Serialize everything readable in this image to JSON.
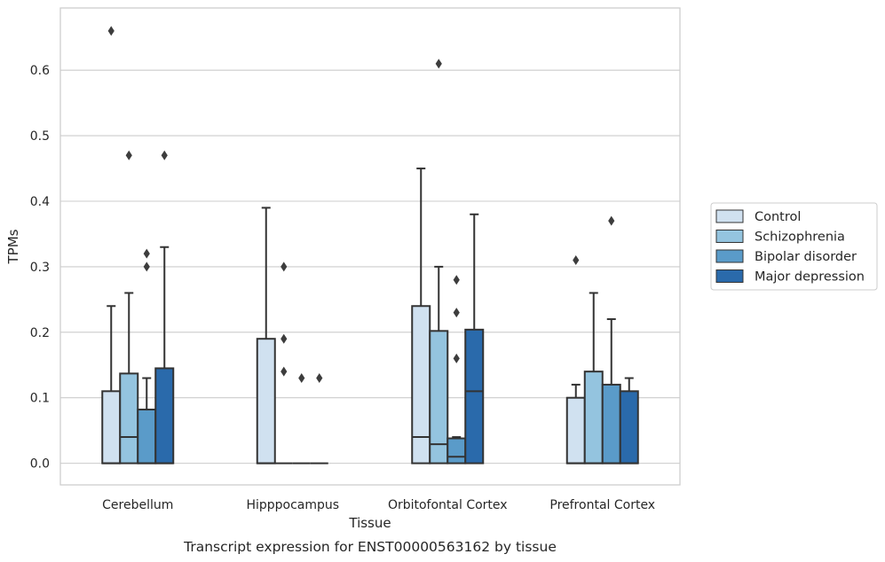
{
  "chart_data": {
    "type": "box",
    "title": "",
    "caption": "Transcript expression for ENST00000563162 by tissue",
    "xlabel": "Tissue",
    "ylabel": "TPMs",
    "ylim": [
      -0.033,
      0.695
    ],
    "yticks": [
      "0.0",
      "0.1",
      "0.2",
      "0.3",
      "0.4",
      "0.5",
      "0.6"
    ],
    "grid": true,
    "legend_position": "right",
    "categories": [
      "Cerebellum",
      "Hipppocampus",
      "Orbitofontal Cortex",
      "Prefrontal Cortex"
    ],
    "series": [
      {
        "name": "Control",
        "color": "#d0e1f0",
        "boxes": [
          {
            "q1": 0.0,
            "median": 0.0,
            "q3": 0.11,
            "whisker_low": 0.0,
            "whisker_high": 0.24,
            "outliers": [
              0.66
            ]
          },
          {
            "q1": 0.0,
            "median": 0.0,
            "q3": 0.19,
            "whisker_low": 0.0,
            "whisker_high": 0.39,
            "outliers": []
          },
          {
            "q1": 0.0,
            "median": 0.04,
            "q3": 0.24,
            "whisker_low": 0.0,
            "whisker_high": 0.45,
            "outliers": []
          },
          {
            "q1": 0.0,
            "median": 0.0,
            "q3": 0.1,
            "whisker_low": 0.0,
            "whisker_high": 0.12,
            "outliers": [
              0.31
            ]
          }
        ]
      },
      {
        "name": "Schizophrenia",
        "color": "#94c4df",
        "boxes": [
          {
            "q1": 0.0,
            "median": 0.04,
            "q3": 0.137,
            "whisker_low": 0.0,
            "whisker_high": 0.26,
            "outliers": [
              0.47
            ]
          },
          {
            "q1": 0.0,
            "median": 0.0,
            "q3": 0.0,
            "whisker_low": 0.0,
            "whisker_high": 0.0,
            "outliers": [
              0.3,
              0.19,
              0.14
            ]
          },
          {
            "q1": 0.0,
            "median": 0.029,
            "q3": 0.202,
            "whisker_low": 0.0,
            "whisker_high": 0.3,
            "outliers": [
              0.61
            ]
          },
          {
            "q1": 0.0,
            "median": 0.0,
            "q3": 0.14,
            "whisker_low": 0.0,
            "whisker_high": 0.26,
            "outliers": []
          }
        ]
      },
      {
        "name": "Bipolar disorder",
        "color": "#5a9bc9",
        "boxes": [
          {
            "q1": 0.0,
            "median": 0.0,
            "q3": 0.082,
            "whisker_low": 0.0,
            "whisker_high": 0.13,
            "outliers": [
              0.3,
              0.32
            ]
          },
          {
            "q1": 0.0,
            "median": 0.0,
            "q3": 0.0,
            "whisker_low": 0.0,
            "whisker_high": 0.0,
            "outliers": [
              0.13
            ]
          },
          {
            "q1": 0.0,
            "median": 0.01,
            "q3": 0.038,
            "whisker_low": 0.0,
            "whisker_high": 0.04,
            "outliers": [
              0.16,
              0.23,
              0.28
            ]
          },
          {
            "q1": 0.0,
            "median": 0.0,
            "q3": 0.12,
            "whisker_low": 0.0,
            "whisker_high": 0.22,
            "outliers": [
              0.37
            ]
          }
        ]
      },
      {
        "name": "Major depression",
        "color": "#2a6aab",
        "boxes": [
          {
            "q1": 0.0,
            "median": 0.0,
            "q3": 0.145,
            "whisker_low": 0.0,
            "whisker_high": 0.33,
            "outliers": [
              0.47
            ]
          },
          {
            "q1": 0.0,
            "median": 0.0,
            "q3": 0.0,
            "whisker_low": 0.0,
            "whisker_high": 0.0,
            "outliers": [
              0.13
            ]
          },
          {
            "q1": 0.0,
            "median": 0.11,
            "q3": 0.204,
            "whisker_low": 0.0,
            "whisker_high": 0.38,
            "outliers": []
          },
          {
            "q1": 0.0,
            "median": 0.0,
            "q3": 0.11,
            "whisker_low": 0.0,
            "whisker_high": 0.13,
            "outliers": []
          }
        ]
      }
    ]
  }
}
